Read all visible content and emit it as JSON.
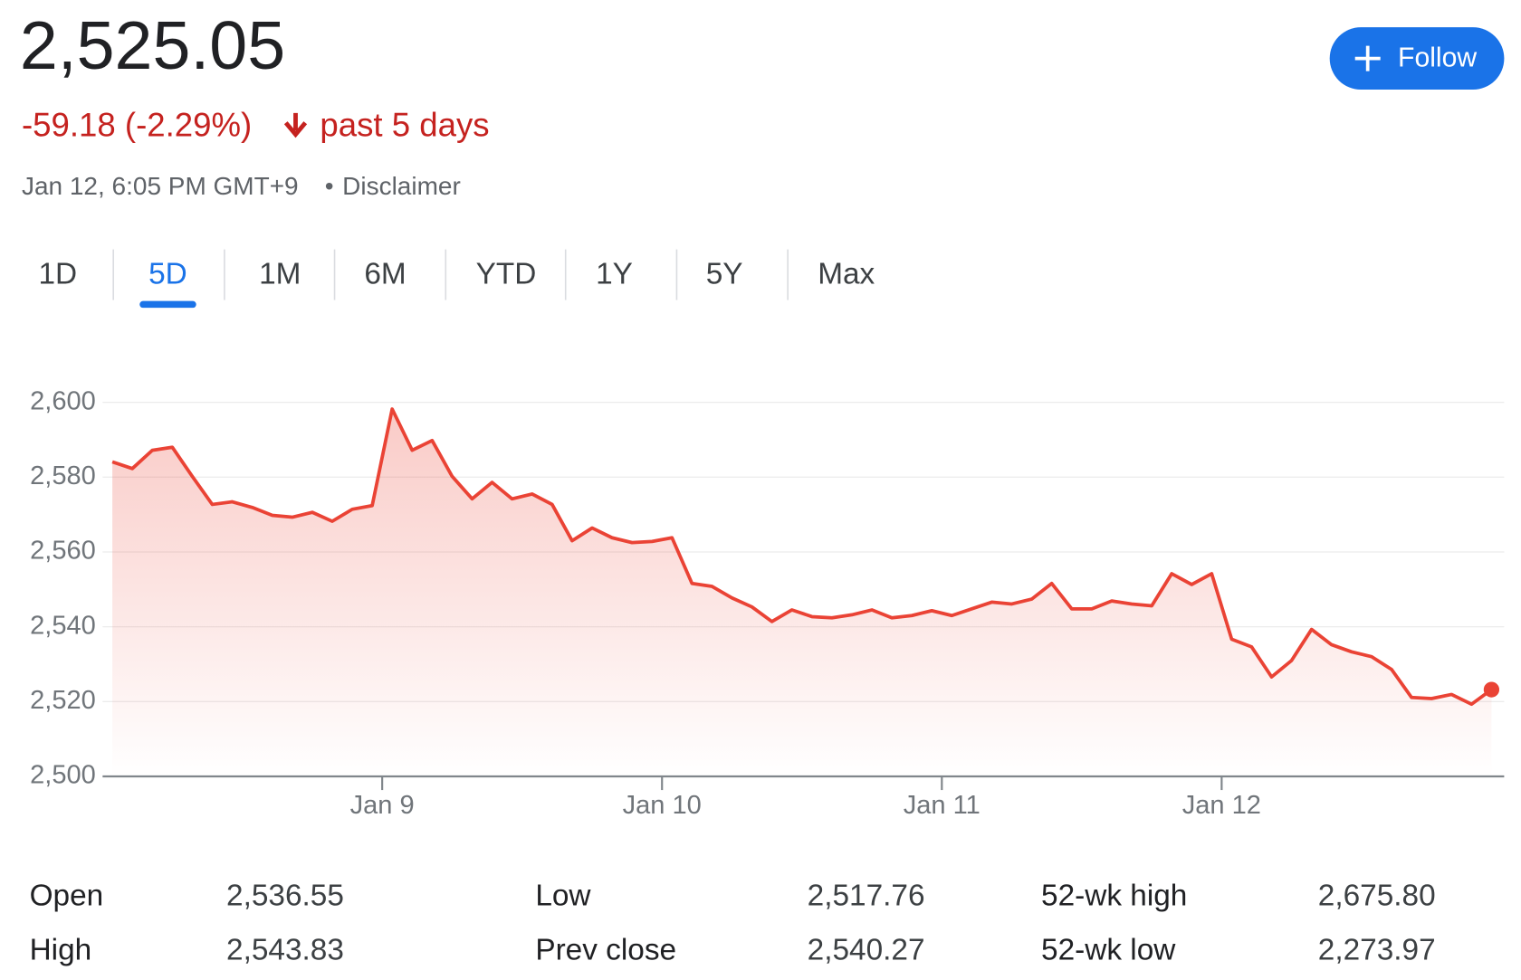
{
  "header": {
    "price": "2,525.05",
    "change": "-59.18 (-2.29%)",
    "period": "past 5 days",
    "timestamp": "Jan 12, 6:05 PM GMT+9",
    "separator": "•",
    "disclaimer": "Disclaimer"
  },
  "follow_button": {
    "label": "Follow"
  },
  "tabs": {
    "items": [
      "1D",
      "5D",
      "1M",
      "6M",
      "YTD",
      "1Y",
      "5Y",
      "Max"
    ],
    "selected": 1
  },
  "chart_data": {
    "type": "line",
    "color": "#ea4335",
    "grid": true,
    "values": [
      2584.1,
      2582.3,
      2587.2,
      2588.0,
      2580.2,
      2572.7,
      2573.4,
      2571.9,
      2569.8,
      2569.3,
      2570.6,
      2568.2,
      2571.4,
      2572.4,
      2598.2,
      2587.2,
      2589.8,
      2580.2,
      2574.2,
      2578.6,
      2574.2,
      2575.5,
      2572.7,
      2563.0,
      2566.4,
      2563.8,
      2562.5,
      2562.8,
      2563.8,
      2551.6,
      2550.8,
      2547.7,
      2545.3,
      2541.4,
      2544.5,
      2542.7,
      2542.4,
      2543.2,
      2544.5,
      2542.4,
      2543.0,
      2544.3,
      2543.0,
      2544.8,
      2546.6,
      2546.1,
      2547.4,
      2551.6,
      2544.8,
      2544.8,
      2546.9,
      2546.1,
      2545.6,
      2554.2,
      2551.3,
      2554.2,
      2536.7,
      2534.6,
      2526.6,
      2531.0,
      2539.3,
      2535.2,
      2533.3,
      2532.0,
      2528.6,
      2521.1,
      2520.8,
      2521.9,
      2519.3,
      2523.2
    ],
    "xlim": [
      0,
      69
    ],
    "xticks": [
      {
        "value": 13.5,
        "label": "Jan 9"
      },
      {
        "value": 27.5,
        "label": "Jan 10"
      },
      {
        "value": 41.5,
        "label": "Jan 11"
      },
      {
        "value": 55.5,
        "label": "Jan 12"
      }
    ],
    "ylim": [
      2500,
      2600
    ],
    "yticks": [
      {
        "value": 2500,
        "label": "2,500"
      },
      {
        "value": 2520,
        "label": "2,520"
      },
      {
        "value": 2540,
        "label": "2,540"
      },
      {
        "value": 2560,
        "label": "2,560"
      },
      {
        "value": 2580,
        "label": "2,580"
      },
      {
        "value": 2600,
        "label": "2,600"
      }
    ]
  },
  "stats": {
    "rows": [
      [
        [
          "Open",
          "2,536.55"
        ],
        [
          "Low",
          "2,517.76"
        ],
        [
          "52-wk high",
          "2,675.80"
        ]
      ],
      [
        [
          "High",
          "2,543.83"
        ],
        [
          "Prev close",
          "2,540.27"
        ],
        [
          "52-wk low",
          "2,273.97"
        ]
      ]
    ]
  }
}
